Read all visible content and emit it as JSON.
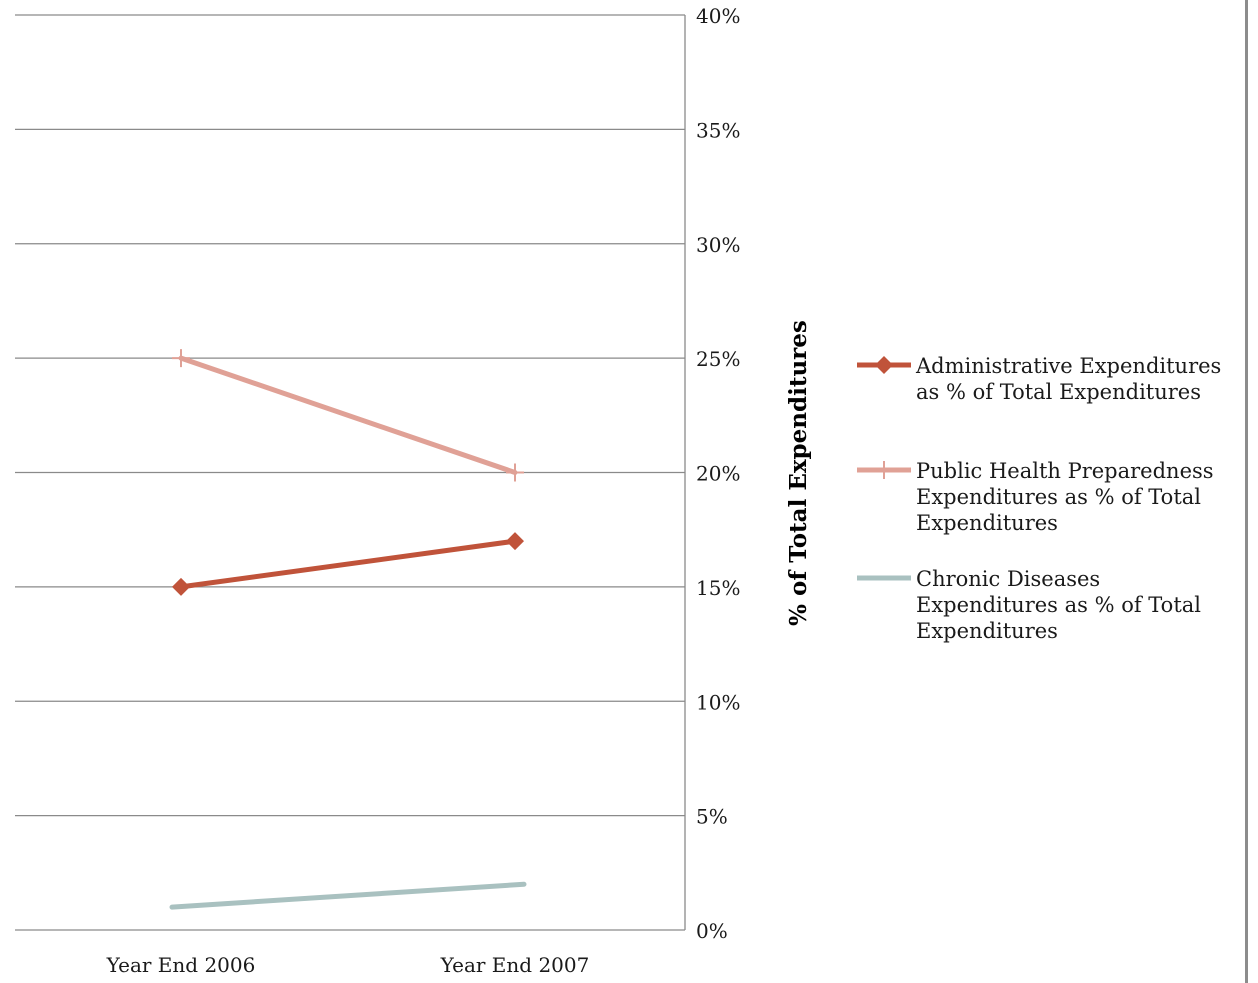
{
  "chart_data": {
    "type": "line",
    "categories": [
      "Year End 2006",
      "Year End 2007"
    ],
    "series": [
      {
        "name": "Administrative Expenditures as % of Total Expenditures",
        "values": [
          15,
          17
        ],
        "color": "#c0533a",
        "marker": "diamond"
      },
      {
        "name": "Public Health Preparedness Expenditures as % of Total Expenditures",
        "values": [
          25,
          20
        ],
        "color": "#e0a196",
        "marker": "plus"
      },
      {
        "name": "Chronic Diseases Expenditures as % of Total Expenditures",
        "values": [
          1,
          2
        ],
        "color": "#a9c1c0",
        "marker": "none"
      }
    ],
    "ylabel": "% of Total Expenditures",
    "ylim": [
      0,
      40
    ],
    "yticks": [
      "0%",
      "5%",
      "10%",
      "15%",
      "20%",
      "25%",
      "30%",
      "35%",
      "40%"
    ],
    "y_axis_position": "right",
    "grid": true,
    "legend_position": "right",
    "legend_lines": [
      [
        "Administrative Expenditures",
        "as % of Total Expenditures"
      ],
      [
        "Public Health Preparedness",
        "Expenditures as % of Total",
        "Expenditures"
      ],
      [
        "Chronic Diseases",
        "Expenditures as % of Total",
        "Expenditures"
      ]
    ]
  }
}
